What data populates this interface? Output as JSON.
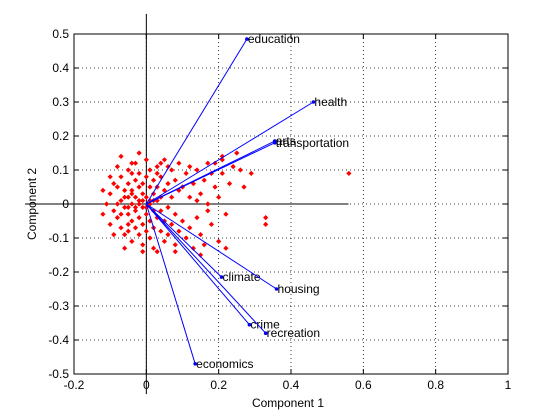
{
  "chart_data": {
    "type": "biplot",
    "xlabel": "Component 1",
    "ylabel": "Component 2",
    "xlim": [
      -0.2,
      1
    ],
    "ylim": [
      -0.5,
      0.5
    ],
    "xticks": [
      -0.2,
      0,
      0.2,
      0.4,
      0.6,
      0.8,
      1
    ],
    "yticks": [
      -0.5,
      -0.4,
      -0.3,
      -0.2,
      -0.1,
      0,
      0.1,
      0.2,
      0.3,
      0.4,
      0.5
    ],
    "grid": true,
    "vectors": [
      {
        "label": "education",
        "x": 0.278,
        "y": 0.485
      },
      {
        "label": "health",
        "x": 0.462,
        "y": 0.3
      },
      {
        "label": "arts",
        "x": 0.355,
        "y": 0.185
      },
      {
        "label": "transportation",
        "x": 0.355,
        "y": 0.18
      },
      {
        "label": "climate",
        "x": 0.208,
        "y": -0.215
      },
      {
        "label": "housing",
        "x": 0.36,
        "y": -0.25
      },
      {
        "label": "crime",
        "x": 0.285,
        "y": -0.355
      },
      {
        "label": "recreation",
        "x": 0.33,
        "y": -0.38
      },
      {
        "label": "economics",
        "x": 0.135,
        "y": -0.47
      }
    ],
    "points": [
      [
        -0.1,
        0.03
      ],
      [
        -0.09,
        -0.02
      ],
      [
        -0.08,
        0.05
      ],
      [
        -0.08,
        -0.04
      ],
      [
        -0.07,
        0.01
      ],
      [
        -0.07,
        0.08
      ],
      [
        -0.07,
        -0.07
      ],
      [
        -0.06,
        0.04
      ],
      [
        -0.06,
        -0.01
      ],
      [
        -0.06,
        -0.09
      ],
      [
        -0.05,
        0.06
      ],
      [
        -0.05,
        0.02
      ],
      [
        -0.05,
        -0.03
      ],
      [
        -0.05,
        -0.06
      ],
      [
        -0.05,
        0.1
      ],
      [
        -0.04,
        0.0
      ],
      [
        -0.04,
        0.04
      ],
      [
        -0.04,
        -0.05
      ],
      [
        -0.04,
        0.09
      ],
      [
        -0.04,
        -0.11
      ],
      [
        -0.03,
        0.02
      ],
      [
        -0.03,
        -0.02
      ],
      [
        -0.03,
        0.07
      ],
      [
        -0.03,
        -0.07
      ],
      [
        -0.03,
        0.12
      ],
      [
        -0.02,
        0.01
      ],
      [
        -0.02,
        0.05
      ],
      [
        -0.02,
        -0.04
      ],
      [
        -0.02,
        -0.09
      ],
      [
        -0.02,
        0.09
      ],
      [
        -0.01,
        0.03
      ],
      [
        -0.01,
        -0.01
      ],
      [
        -0.01,
        0.06
      ],
      [
        -0.01,
        -0.06
      ],
      [
        -0.01,
        -0.12
      ],
      [
        0.0,
        0.02
      ],
      [
        0.0,
        -0.03
      ],
      [
        0.0,
        0.08
      ],
      [
        0.0,
        -0.08
      ],
      [
        0.0,
        0.13
      ],
      [
        0.01,
        0.01
      ],
      [
        0.01,
        0.05
      ],
      [
        0.01,
        -0.05
      ],
      [
        0.01,
        -0.1
      ],
      [
        0.01,
        0.1
      ],
      [
        0.02,
        0.03
      ],
      [
        0.02,
        -0.02
      ],
      [
        0.02,
        0.07
      ],
      [
        0.02,
        -0.07
      ],
      [
        0.02,
        -0.13
      ],
      [
        0.03,
        0.01
      ],
      [
        0.03,
        0.05
      ],
      [
        0.03,
        -0.04
      ],
      [
        0.03,
        0.11
      ],
      [
        0.04,
        0.02
      ],
      [
        0.04,
        -0.02
      ],
      [
        0.04,
        0.08
      ],
      [
        0.04,
        -0.08
      ],
      [
        0.05,
        0.04
      ],
      [
        0.05,
        -0.05
      ],
      [
        0.05,
        0.13
      ],
      [
        0.05,
        -0.11
      ],
      [
        0.06,
        0.06
      ],
      [
        0.06,
        -0.01
      ],
      [
        0.06,
        -0.09
      ],
      [
        0.07,
        0.02
      ],
      [
        0.07,
        0.1
      ],
      [
        0.07,
        -0.06
      ],
      [
        0.08,
        0.07
      ],
      [
        0.08,
        -0.03
      ],
      [
        0.08,
        -0.12
      ],
      [
        0.09,
        0.04
      ],
      [
        0.09,
        -0.08
      ],
      [
        -0.11,
        0.0
      ],
      [
        -0.1,
        0.08
      ],
      [
        -0.1,
        -0.06
      ],
      [
        -0.09,
        0.06
      ],
      [
        -0.09,
        -0.09
      ],
      [
        -0.08,
        0.11
      ],
      [
        -0.12,
        0.04
      ],
      [
        -0.12,
        -0.03
      ],
      [
        -0.07,
        0.14
      ],
      [
        -0.06,
        -0.13
      ],
      [
        -0.02,
        0.15
      ],
      [
        0.03,
        -0.14
      ],
      [
        0.1,
        0.05
      ],
      [
        0.1,
        -0.05
      ],
      [
        0.11,
        0.09
      ],
      [
        0.11,
        -0.1
      ],
      [
        0.12,
        0.02
      ],
      [
        0.12,
        -0.07
      ],
      [
        0.13,
        0.06
      ],
      [
        0.13,
        -0.13
      ],
      [
        0.14,
        0.1
      ],
      [
        0.14,
        -0.04
      ],
      [
        0.15,
        0.03
      ],
      [
        0.15,
        -0.09
      ],
      [
        0.16,
        0.07
      ],
      [
        0.16,
        -0.12
      ],
      [
        0.17,
        0.0
      ],
      [
        0.17,
        0.12
      ],
      [
        0.18,
        -0.06
      ],
      [
        0.19,
        0.05
      ],
      [
        0.2,
        -0.11
      ],
      [
        0.21,
        0.13
      ],
      [
        0.21,
        0.09
      ],
      [
        0.22,
        -0.03
      ],
      [
        0.22,
        -0.13
      ],
      [
        0.23,
        0.06
      ],
      [
        0.24,
        0.11
      ],
      [
        0.25,
        0.15
      ],
      [
        0.21,
        0.14
      ],
      [
        0.27,
        0.05
      ],
      [
        0.29,
        0.09
      ],
      [
        0.33,
        -0.04
      ],
      [
        0.33,
        -0.06
      ],
      [
        0.56,
        0.09
      ],
      [
        0.2,
        0.02
      ],
      [
        0.18,
        0.09
      ],
      [
        0.15,
        -0.15
      ],
      [
        -0.05,
        -0.01
      ],
      [
        -0.04,
        0.03
      ],
      [
        -0.03,
        -0.01
      ],
      [
        -0.02,
        0.0
      ],
      [
        -0.01,
        0.01
      ],
      [
        0.0,
        -0.01
      ],
      [
        0.01,
        0.0
      ],
      [
        0.02,
        0.01
      ],
      [
        -0.06,
        0.02
      ],
      [
        -0.07,
        -0.03
      ],
      [
        -0.08,
        0.0
      ],
      [
        -0.05,
        -0.08
      ],
      [
        -0.04,
        0.12
      ],
      [
        0.04,
        0.12
      ],
      [
        0.06,
        0.11
      ],
      [
        0.08,
        -0.14
      ],
      [
        0.09,
        0.12
      ],
      [
        0.12,
        0.11
      ],
      [
        0.03,
        0.09
      ],
      [
        -0.01,
        -0.14
      ],
      [
        0.26,
        0.1
      ],
      [
        0.19,
        0.12
      ],
      [
        0.17,
        -0.02
      ],
      [
        0.14,
        0.01
      ]
    ]
  }
}
